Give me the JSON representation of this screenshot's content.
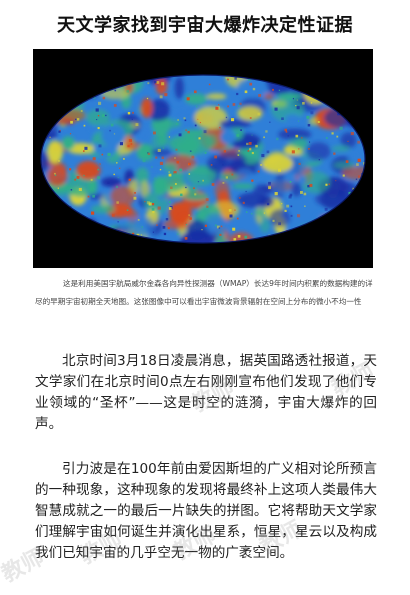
{
  "article": {
    "title": "天文学家找到宇宙大爆炸决定性证据",
    "image_caption": "这是利用美国宇航局威尔金森各向异性探测器（WMAP）长达9年时间内积累的数据构建的详尽的早期宇宙初期全天地图。这张图像中可以看出宇宙微波背景辐射在空间上分布的微小不均一性",
    "paragraphs": [
      "北京时间3月18日凌晨消息，据英国路透社报道，天文学家们在北京时间0点左右刚刚宣布他们发现了他们专业领域的“圣杯”——这是时空的涟漪，宇宙大爆炸的回声。",
      "引力波是在100年前由爱因斯坦的广义相对论所预言的一种现象，这种现象的发现将最终补上这项人类最伟大智慧成就之一的最后一片缺失的拼图。它将帮助天文学家们理解宇宙如何诞生并演化出星系，恒星，星云以及构成我们已知宇宙的几乎空无一物的广袤空间。"
    ],
    "watermark_text": "教师"
  },
  "colors": {
    "map_background": "#000000",
    "map_cold": "#1a2fa6",
    "map_cool": "#2f7fd8",
    "map_neutral": "#2faf8a",
    "map_warm": "#d8d23a",
    "map_hot": "#d84a1e"
  }
}
